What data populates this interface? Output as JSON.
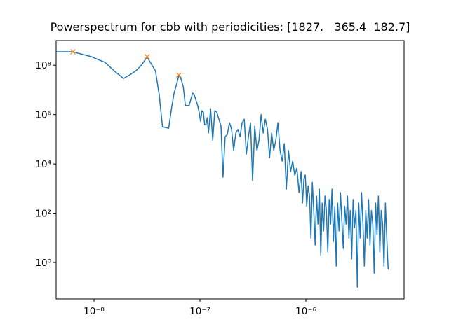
{
  "chart_data": {
    "type": "line",
    "title": "Powerspectrum for cbb with periodicities: [1827.   365.4  182.7]",
    "log_x": true,
    "log_y": true,
    "xlim": [
      4.39e-09,
      8.45e-06
    ],
    "ylim": [
      0.0335,
      1000000000.0
    ],
    "xticks": [
      {
        "value": 1e-08,
        "label": "10⁻⁸"
      },
      {
        "value": 1e-07,
        "label": "10⁻⁷"
      },
      {
        "value": 1e-06,
        "label": "10⁻⁶"
      }
    ],
    "yticks": [
      {
        "value": 1,
        "label": "10⁰"
      },
      {
        "value": 100,
        "label": "10²"
      },
      {
        "value": 10000,
        "label": "10⁴"
      },
      {
        "value": 1000000,
        "label": "10⁶"
      },
      {
        "value": 100000000,
        "label": "10⁸"
      }
    ],
    "series": [
      {
        "color": "#1f77b4",
        "marker": "none",
        "x": [
          3.17e-09,
          6.33e-09,
          9.5e-09,
          1.27e-08,
          1.58e-08,
          1.9e-08,
          2.22e-08,
          2.53e-08,
          2.85e-08,
          3.17e-08,
          3.48e-08,
          3.8e-08,
          4.12e-08,
          4.43e-08,
          4.75e-08,
          5.07e-08,
          5.38e-08,
          5.7e-08,
          6.02e-08,
          6.33e-08,
          6.65e-08,
          6.97e-08,
          7.28e-08,
          7.6e-08,
          7.92e-08,
          8.23e-08,
          8.55e-08,
          8.86e-08,
          9.18e-08,
          9.5e-08,
          9.81e-08,
          1.013e-07,
          1.045e-07,
          1.076e-07,
          1.108e-07,
          1.14e-07,
          1.171e-07,
          1.203e-07,
          1.26e-07,
          1.32e-07,
          1.38e-07,
          1.44e-07,
          1.51e-07,
          1.58e-07,
          1.65e-07,
          1.73e-07,
          1.81e-07,
          1.9e-07,
          1.99e-07,
          2.08e-07,
          2.18e-07,
          2.28e-07,
          2.39e-07,
          2.5e-07,
          2.62e-07,
          2.74e-07,
          2.87e-07,
          3e-07,
          3.14e-07,
          3.29e-07,
          3.45e-07,
          3.61e-07,
          3.78e-07,
          3.96e-07,
          4.14e-07,
          4.34e-07,
          4.54e-07,
          4.75e-07,
          4.97e-07,
          5.2e-07,
          5.45e-07,
          5.7e-07,
          5.97e-07,
          6.25e-07,
          6.54e-07,
          6.85e-07,
          7.17e-07,
          7.5e-07,
          7.85e-07,
          8.22e-07,
          8.61e-07,
          9.01e-07,
          9.29e-07,
          9.58e-07,
          9.87e-07,
          1.018e-06,
          1.05e-06,
          1.082e-06,
          1.116e-06,
          1.15e-06,
          1.186e-06,
          1.223e-06,
          1.261e-06,
          1.3e-06,
          1.34e-06,
          1.382e-06,
          1.425e-06,
          1.469e-06,
          1.514e-06,
          1.561e-06,
          1.61e-06,
          1.66e-06,
          1.711e-06,
          1.764e-06,
          1.819e-06,
          1.875e-06,
          1.933e-06,
          1.993e-06,
          2.055e-06,
          2.119e-06,
          2.185e-06,
          2.253e-06,
          2.323e-06,
          2.395e-06,
          2.469e-06,
          2.546e-06,
          2.625e-06,
          2.706e-06,
          2.79e-06,
          2.877e-06,
          2.966e-06,
          3.058e-06,
          3.153e-06,
          3.251e-06,
          3.352e-06,
          3.456e-06,
          3.563e-06,
          3.673e-06,
          3.787e-06,
          3.904e-06,
          4.025e-06,
          4.15e-06,
          4.279e-06,
          4.412e-06,
          4.549e-06,
          4.69e-06,
          4.835e-06,
          4.985e-06,
          5.14e-06,
          5.3e-06,
          5.46e-06,
          5.63e-06,
          5.8e-06,
          5.98e-06
        ],
        "values": [
          350000000.0,
          350000000.0,
          220000000.0,
          130000000.0,
          55000000.0,
          29000000.0,
          43000000.0,
          63000000.0,
          110000000.0,
          220000000.0,
          110000000.0,
          59000000.0,
          6500000.0,
          320000.0,
          300000.0,
          280000.0,
          1700000.0,
          7400000.0,
          17000000.0,
          40000000.0,
          27000000.0,
          13000000.0,
          2400000.0,
          2300000.0,
          2400000.0,
          4400000.0,
          7400000.0,
          6000000.0,
          3800000.0,
          2400000.0,
          1300000.0,
          540000.0,
          1430000.0,
          1260000.0,
          390000.0,
          390000.0,
          750000.0,
          180000.0,
          1740000.0,
          92000.0,
          1430000.0,
          1260000.0,
          650000.0,
          340000.0,
          2900,
          128000.0,
          155000.0,
          470000.0,
          250000.0,
          35000.0,
          180000.0,
          250000.0,
          128000.0,
          470000.0,
          650000.0,
          25000.0,
          128000.0,
          470000.0,
          2100,
          340000.0,
          35000.0,
          92000.0,
          1000000.0,
          180000.0,
          650000.0,
          250000.0,
          18000.0,
          180000.0,
          35000.0,
          92000.0,
          470000.0,
          35000.0,
          13000.0,
          66000.0,
          950,
          35000.0,
          4900,
          13000.0,
          3500,
          6800,
          690,
          4900,
          260,
          2500,
          3500,
          190,
          1300,
          500,
          9.8,
          1800,
          130,
          5.1,
          500,
          36,
          950,
          1.9,
          260,
          19,
          500,
          130,
          2.7,
          360,
          36,
          950,
          7.1,
          190,
          0.72,
          260,
          19,
          690,
          50,
          3.7,
          190,
          36,
          500,
          9.8,
          130,
          1.4,
          360,
          26,
          130,
          0.1,
          260,
          9.8,
          690,
          36,
          0.72,
          130,
          9.8,
          360,
          5.1,
          130,
          36,
          0.37,
          260,
          14,
          500,
          2.7,
          130,
          36,
          0.72,
          260,
          9.8,
          0.52
        ]
      },
      {
        "color": "#ff7f0e",
        "marker": "x",
        "line": false,
        "x": [
          6.33e-09,
          3.17e-08,
          6.33e-08
        ],
        "values": [
          350000000.0,
          220000000.0,
          40000000.0
        ]
      }
    ]
  }
}
